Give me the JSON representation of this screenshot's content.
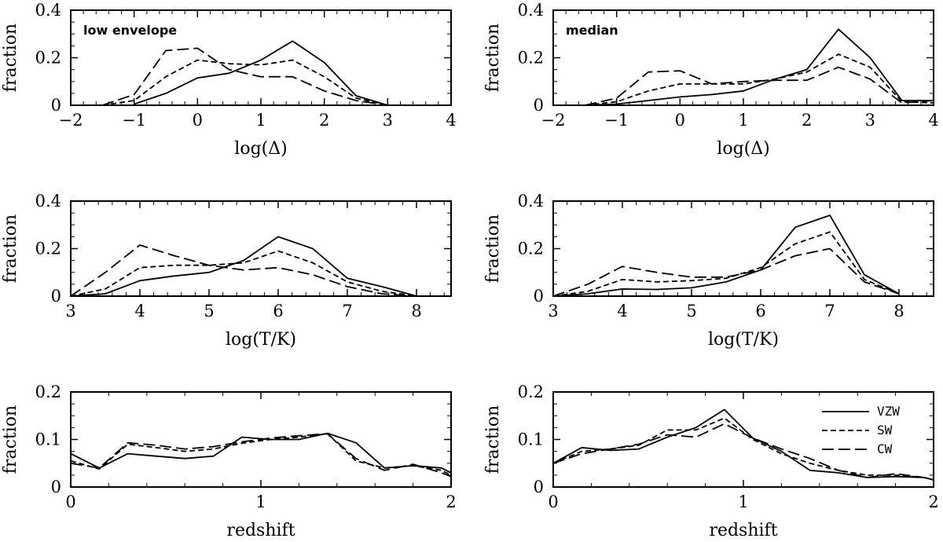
{
  "figure": {
    "panel_count": 6
  },
  "chart_data": [
    {
      "type": "line",
      "title": "",
      "annotation": "low envelope",
      "xlabel": "log(Δ)",
      "ylabel": "fraction",
      "xlim": [
        -2,
        4
      ],
      "ylim": [
        0,
        0.4
      ],
      "xticks": [
        -2,
        -1,
        0,
        1,
        2,
        3,
        4
      ],
      "xtick_labels": [
        "−2",
        "−1",
        "0",
        "1",
        "2",
        "3",
        "4"
      ],
      "yticks": [
        0,
        0.2,
        0.4
      ],
      "ytick_labels": [
        "0",
        "0.2",
        "0.4"
      ],
      "series": [
        {
          "name": "VZW",
          "style": "solid",
          "x": [
            -1,
            -0.5,
            0,
            0.5,
            1,
            1.5,
            2,
            2.5,
            3
          ],
          "values": [
            0.005,
            0.05,
            0.115,
            0.135,
            0.19,
            0.27,
            0.18,
            0.04,
            0.0
          ]
        },
        {
          "name": "SW",
          "style": "short-dash",
          "x": [
            -1.5,
            -1,
            -0.5,
            0,
            0.5,
            1,
            1.5,
            2,
            2.5,
            3
          ],
          "values": [
            0.0,
            0.02,
            0.12,
            0.19,
            0.175,
            0.17,
            0.19,
            0.12,
            0.03,
            0.0
          ]
        },
        {
          "name": "CW",
          "style": "long-dash",
          "x": [
            -1.5,
            -1,
            -0.5,
            0,
            0.5,
            1,
            1.5,
            2,
            2.5,
            3
          ],
          "values": [
            0.0,
            0.045,
            0.23,
            0.24,
            0.15,
            0.12,
            0.12,
            0.06,
            0.02,
            0.0
          ]
        }
      ]
    },
    {
      "type": "line",
      "title": "",
      "annotation": "median",
      "xlabel": "log(Δ)",
      "ylabel": "fraction",
      "xlim": [
        -2,
        4
      ],
      "ylim": [
        0,
        0.4
      ],
      "xticks": [
        -2,
        -1,
        0,
        1,
        2,
        3,
        4
      ],
      "xtick_labels": [
        "−2",
        "−1",
        "0",
        "1",
        "2",
        "3",
        "4"
      ],
      "yticks": [
        0,
        0.2,
        0.4
      ],
      "ytick_labels": [
        "0",
        "0.2",
        "0.4"
      ],
      "series": [
        {
          "name": "VZW",
          "style": "solid",
          "x": [
            -1.5,
            -1,
            -0.5,
            0,
            0.5,
            1,
            1.5,
            2,
            2.5,
            3,
            3.5,
            4
          ],
          "values": [
            0.0,
            0.005,
            0.02,
            0.035,
            0.045,
            0.06,
            0.11,
            0.15,
            0.32,
            0.2,
            0.02,
            0.02
          ]
        },
        {
          "name": "SW",
          "style": "short-dash",
          "x": [
            -1.5,
            -1,
            -0.5,
            0,
            0.5,
            1,
            1.5,
            2,
            2.5,
            3,
            3.5,
            4
          ],
          "values": [
            0.0,
            0.015,
            0.06,
            0.09,
            0.09,
            0.09,
            0.11,
            0.14,
            0.215,
            0.16,
            0.015,
            0.01
          ]
        },
        {
          "name": "CW",
          "style": "long-dash",
          "x": [
            -1.5,
            -1,
            -0.5,
            0,
            0.5,
            1,
            1.5,
            2,
            2.5,
            3,
            3.5,
            4
          ],
          "values": [
            0.0,
            0.03,
            0.14,
            0.145,
            0.09,
            0.1,
            0.105,
            0.105,
            0.16,
            0.11,
            0.01,
            0.02
          ]
        }
      ]
    },
    {
      "type": "line",
      "title": "",
      "annotation": "",
      "xlabel": "log(T/K)",
      "ylabel": "fraction",
      "xlim": [
        3,
        8.5
      ],
      "ylim": [
        0,
        0.4
      ],
      "xticks": [
        3,
        4,
        5,
        6,
        7,
        8
      ],
      "xtick_labels": [
        "3",
        "4",
        "5",
        "6",
        "7",
        "8"
      ],
      "yticks": [
        0,
        0.2,
        0.4
      ],
      "ytick_labels": [
        "0",
        "0.2",
        "0.4"
      ],
      "series": [
        {
          "name": "VZW",
          "style": "solid",
          "x": [
            3,
            3.5,
            4,
            4.5,
            5,
            5.5,
            6,
            6.5,
            7,
            7.5,
            8
          ],
          "values": [
            0.0,
            0.01,
            0.065,
            0.085,
            0.1,
            0.15,
            0.25,
            0.2,
            0.075,
            0.04,
            0.0
          ]
        },
        {
          "name": "SW",
          "style": "short-dash",
          "x": [
            3,
            3.5,
            4,
            4.5,
            5,
            5.5,
            6,
            6.5,
            7,
            7.5,
            8
          ],
          "values": [
            0.0,
            0.03,
            0.12,
            0.13,
            0.13,
            0.14,
            0.19,
            0.14,
            0.06,
            0.02,
            0.0
          ]
        },
        {
          "name": "CW",
          "style": "long-dash",
          "x": [
            3,
            3.5,
            4,
            4.5,
            5,
            5.5,
            6,
            6.5,
            7,
            7.5,
            8
          ],
          "values": [
            0.0,
            0.1,
            0.215,
            0.17,
            0.13,
            0.11,
            0.12,
            0.09,
            0.04,
            0.01,
            0.0
          ]
        }
      ]
    },
    {
      "type": "line",
      "title": "",
      "annotation": "",
      "xlabel": "log(T/K)",
      "ylabel": "fraction",
      "xlim": [
        3,
        8.5
      ],
      "ylim": [
        0,
        0.4
      ],
      "xticks": [
        3,
        4,
        5,
        6,
        7,
        8
      ],
      "xtick_labels": [
        "3",
        "4",
        "5",
        "6",
        "7",
        "8"
      ],
      "yticks": [
        0,
        0.2,
        0.4
      ],
      "ytick_labels": [
        "0",
        "0.2",
        "0.4"
      ],
      "series": [
        {
          "name": "VZW",
          "style": "solid",
          "x": [
            3,
            3.5,
            4,
            4.5,
            5,
            5.5,
            6,
            6.5,
            7,
            7.5,
            8
          ],
          "values": [
            0.0,
            0.01,
            0.03,
            0.028,
            0.035,
            0.06,
            0.11,
            0.29,
            0.34,
            0.09,
            0.01
          ]
        },
        {
          "name": "SW",
          "style": "short-dash",
          "x": [
            3,
            3.5,
            4,
            4.5,
            5,
            5.5,
            6,
            6.5,
            7,
            7.5,
            8
          ],
          "values": [
            0.0,
            0.02,
            0.07,
            0.06,
            0.065,
            0.075,
            0.12,
            0.22,
            0.27,
            0.07,
            0.01
          ]
        },
        {
          "name": "CW",
          "style": "long-dash",
          "x": [
            3,
            3.5,
            4,
            4.5,
            5,
            5.5,
            6,
            6.5,
            7,
            7.5,
            8
          ],
          "values": [
            0.0,
            0.05,
            0.125,
            0.1,
            0.08,
            0.08,
            0.11,
            0.17,
            0.2,
            0.06,
            0.01
          ]
        }
      ]
    },
    {
      "type": "line",
      "title": "",
      "annotation": "",
      "xlabel": "redshift",
      "ylabel": "fraction",
      "xlim": [
        0,
        2
      ],
      "ylim": [
        0,
        0.2
      ],
      "xticks": [
        0,
        1,
        2
      ],
      "xtick_labels": [
        "0",
        "1",
        "2"
      ],
      "yticks": [
        0,
        0.1,
        0.2
      ],
      "ytick_labels": [
        "0",
        "0.1",
        "0.2"
      ],
      "series": [
        {
          "name": "VZW",
          "style": "solid",
          "x": [
            0,
            0.15,
            0.3,
            0.45,
            0.6,
            0.75,
            0.9,
            1.05,
            1.2,
            1.35,
            1.5,
            1.65,
            1.8,
            1.95,
            2.0
          ],
          "values": [
            0.07,
            0.04,
            0.07,
            0.065,
            0.06,
            0.065,
            0.105,
            0.1,
            0.1,
            0.113,
            0.093,
            0.04,
            0.045,
            0.04,
            0.03
          ]
        },
        {
          "name": "SW",
          "style": "short-dash",
          "x": [
            0,
            0.15,
            0.3,
            0.45,
            0.6,
            0.75,
            0.9,
            1.05,
            1.2,
            1.35,
            1.5,
            1.65,
            1.8,
            1.95,
            2.0
          ],
          "values": [
            0.055,
            0.038,
            0.09,
            0.083,
            0.075,
            0.08,
            0.092,
            0.1,
            0.105,
            0.112,
            0.055,
            0.04,
            0.045,
            0.035,
            0.025
          ]
        },
        {
          "name": "CW",
          "style": "long-dash",
          "x": [
            0,
            0.15,
            0.3,
            0.45,
            0.6,
            0.75,
            0.9,
            1.05,
            1.2,
            1.35,
            1.5,
            1.65,
            1.8,
            1.95,
            2.0
          ],
          "values": [
            0.05,
            0.04,
            0.093,
            0.088,
            0.08,
            0.085,
            0.095,
            0.103,
            0.108,
            0.112,
            0.06,
            0.035,
            0.048,
            0.03,
            0.022
          ]
        }
      ]
    },
    {
      "type": "line",
      "title": "",
      "annotation": "",
      "xlabel": "redshift",
      "ylabel": "fraction",
      "xlim": [
        0,
        2
      ],
      "ylim": [
        0,
        0.2
      ],
      "xticks": [
        0,
        1,
        2
      ],
      "xtick_labels": [
        "0",
        "1",
        "2"
      ],
      "yticks": [
        0,
        0.1,
        0.2
      ],
      "ytick_labels": [
        "0",
        "0.1",
        "0.2"
      ],
      "legend": {
        "position": "top-right",
        "entries": [
          "VZW",
          "SW",
          "CW"
        ]
      },
      "series": [
        {
          "name": "VZW",
          "style": "solid",
          "x": [
            0,
            0.15,
            0.3,
            0.45,
            0.6,
            0.75,
            0.9,
            1.05,
            1.2,
            1.35,
            1.5,
            1.65,
            1.8,
            1.95,
            2.0
          ],
          "values": [
            0.05,
            0.083,
            0.077,
            0.08,
            0.105,
            0.125,
            0.163,
            0.103,
            0.075,
            0.035,
            0.03,
            0.02,
            0.022,
            0.02,
            0.015
          ]
        },
        {
          "name": "SW",
          "style": "short-dash",
          "x": [
            0,
            0.15,
            0.3,
            0.45,
            0.6,
            0.75,
            0.9,
            1.05,
            1.2,
            1.35,
            1.5,
            1.65,
            1.8,
            1.95,
            2.0
          ],
          "values": [
            0.05,
            0.075,
            0.08,
            0.088,
            0.12,
            0.12,
            0.145,
            0.1,
            0.07,
            0.05,
            0.035,
            0.025,
            0.025,
            0.02,
            0.015
          ]
        },
        {
          "name": "CW",
          "style": "long-dash",
          "x": [
            0,
            0.15,
            0.3,
            0.45,
            0.6,
            0.75,
            0.9,
            1.05,
            1.2,
            1.35,
            1.5,
            1.65,
            1.8,
            1.95,
            2.0
          ],
          "values": [
            0.05,
            0.07,
            0.08,
            0.09,
            0.11,
            0.105,
            0.133,
            0.103,
            0.08,
            0.06,
            0.035,
            0.02,
            0.028,
            0.02,
            0.015
          ]
        }
      ]
    }
  ]
}
